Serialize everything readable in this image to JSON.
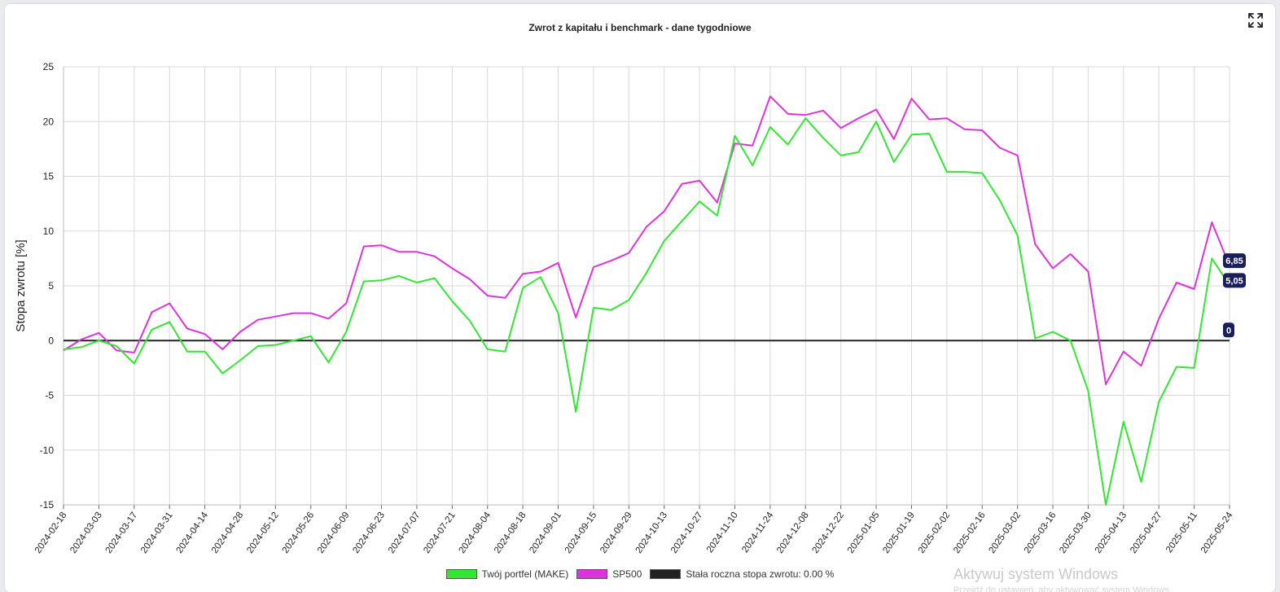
{
  "chart_data": {
    "type": "line",
    "title": "Zwrot z kapitału i benchmark - dane tygodniowe",
    "ylabel": "Stopa zwrotu [%]",
    "xlabel": "",
    "ylim": [
      -15,
      25
    ],
    "yticks": [
      25,
      20,
      15,
      10,
      5,
      0,
      -5,
      -10,
      -15
    ],
    "grid": true,
    "legend_position": "bottom",
    "x_tick_labels": [
      "2024-02-18",
      "2024-03-03",
      "2024-03-17",
      "2024-03-31",
      "2024-04-14",
      "2024-04-28",
      "2024-05-12",
      "2024-05-26",
      "2024-06-09",
      "2024-06-23",
      "2024-07-07",
      "2024-07-21",
      "2024-08-04",
      "2024-08-18",
      "2024-09-01",
      "2024-09-15",
      "2024-09-29",
      "2024-10-13",
      "2024-10-27",
      "2024-11-10",
      "2024-11-24",
      "2024-12-08",
      "2024-12-22",
      "2025-01-05",
      "2025-01-19",
      "2025-02-02",
      "2025-02-16",
      "2025-03-02",
      "2025-03-16",
      "2025-03-30",
      "2025-04-13",
      "2025-04-27",
      "2025-05-11",
      "2025-05-24"
    ],
    "series": [
      {
        "name": "Twój portfel (MAKE)",
        "color": "#33e633",
        "values": [
          -0.8,
          -0.6,
          0.0,
          -0.5,
          -2.1,
          1.0,
          1.7,
          -1.0,
          -1.0,
          -3.0,
          -1.8,
          -0.5,
          -0.4,
          0.0,
          0.4,
          -2.0,
          0.8,
          5.4,
          5.5,
          5.9,
          5.3,
          5.7,
          3.6,
          1.8,
          -0.8,
          -1.0,
          4.8,
          5.8,
          2.5,
          -6.5,
          3.0,
          2.8,
          3.7,
          6.2,
          9.1,
          10.9,
          12.7,
          11.4,
          18.7,
          16.0,
          19.5,
          17.9,
          20.3,
          18.5,
          16.9,
          17.2,
          20.0,
          16.3,
          18.8,
          18.9,
          15.4,
          15.4,
          15.3,
          12.8,
          9.6,
          0.2,
          0.8,
          0.0,
          -4.6,
          -15.0,
          -7.4,
          -12.9,
          -5.6,
          -2.4,
          -2.5,
          7.5,
          5.05
        ]
      },
      {
        "name": "SP500",
        "color": "#dd33dd",
        "values": [
          -0.9,
          0.1,
          0.7,
          -0.9,
          -1.1,
          2.6,
          3.4,
          1.1,
          0.6,
          -0.8,
          0.8,
          1.9,
          2.2,
          2.5,
          2.5,
          2.0,
          3.4,
          8.6,
          8.7,
          8.1,
          8.1,
          7.7,
          6.6,
          5.6,
          4.1,
          3.9,
          6.1,
          6.3,
          7.1,
          2.1,
          6.7,
          7.3,
          8.0,
          10.4,
          11.8,
          14.3,
          14.6,
          12.6,
          18.0,
          17.8,
          22.3,
          20.7,
          20.6,
          21.0,
          19.4,
          20.3,
          21.1,
          18.4,
          22.1,
          20.2,
          20.3,
          19.3,
          19.2,
          17.6,
          16.9,
          8.8,
          6.6,
          7.9,
          6.3,
          -4.0,
          -1.0,
          -2.3,
          2.0,
          5.3,
          4.7,
          10.8,
          6.85
        ]
      },
      {
        "name": "Stała roczna stopa zwrotu: 0.00 %",
        "color": "#222222",
        "values": [
          0,
          0
        ]
      }
    ],
    "end_labels": [
      "6,85",
      "5,05",
      "0"
    ]
  },
  "ui": {
    "fullscreen_icon": "expand-icon",
    "watermark_title": "Aktywuj system Windows",
    "watermark_sub": "Przejdź do ustawień, aby aktywować system Windows."
  }
}
